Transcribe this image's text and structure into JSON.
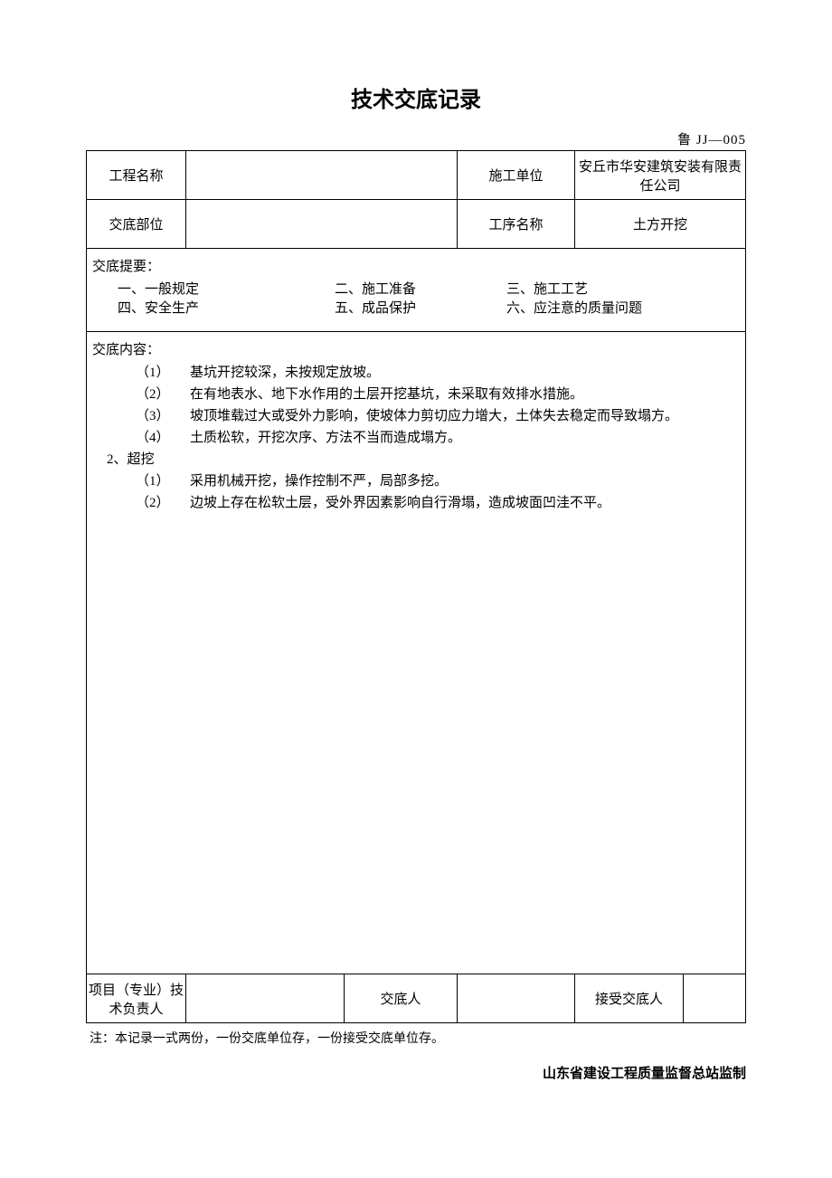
{
  "doc": {
    "title": "技术交底记录",
    "code": "鲁 JJ—005",
    "note": "注：本记录一式两份，一份交底单位存，一份接受交底单位存。",
    "supervisor": "山东省建设工程质量监督总站监制"
  },
  "header": {
    "project_label": "工程名称",
    "project_value": "",
    "unit_label": "施工单位",
    "unit_value": "安丘市华安建筑安装有限责任公司",
    "dept_label": "交底部位",
    "dept_value": "",
    "process_label": "工序名称",
    "process_value": "土方开挖"
  },
  "summary": {
    "header": "交底提要：",
    "items": [
      "一、一般规定",
      "二、施工准备",
      "三、施工工艺",
      "四、安全生产",
      "五、成品保护",
      "六、应注意的质量问题"
    ]
  },
  "content": {
    "header": "交底内容：",
    "lines": [
      {
        "num": "（1）",
        "text": "基坑开挖较深，未按规定放坡。"
      },
      {
        "num": "（2）",
        "text": "在有地表水、地下水作用的土层开挖基坑，未采取有效排水措施。"
      },
      {
        "num": "（3）",
        "text": "坡顶堆载过大或受外力影响，使坡体力剪切应力增大，土体失去稳定而导致塌方。"
      },
      {
        "num": "（4）",
        "text": "土质松软，开挖次序、方法不当而造成塌方。"
      }
    ],
    "sub_header": "2、超挖",
    "lines2": [
      {
        "num": "（1）",
        "text": "采用机械开挖，操作控制不严，局部多挖。"
      },
      {
        "num": "（2）",
        "text": "边坡上存在松软土层，受外界因素影响自行滑塌，造成坡面凹洼不平。"
      }
    ]
  },
  "footer": {
    "tech_leader_label": "项目（专业）技术负责人",
    "tech_leader_value": "",
    "disclosed_by_label": "交底人",
    "disclosed_by_value": "",
    "received_by_label": "接受交底人",
    "received_by_value": ""
  },
  "style": {
    "font_family": "SimSun",
    "title_fontsize": 24,
    "body_fontsize": 15,
    "border_color": "#000000",
    "background": "#ffffff",
    "text_color": "#000000"
  }
}
